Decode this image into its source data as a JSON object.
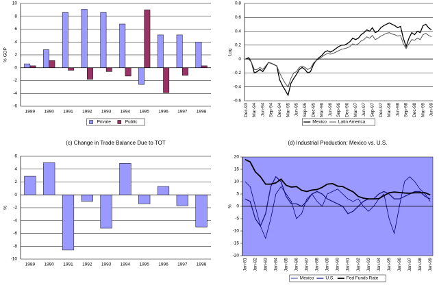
{
  "chart_data": [
    {
      "type": "bar",
      "y_label": "% GDP",
      "categories": [
        "1989",
        "1990",
        "1991",
        "1992",
        "1993",
        "1994",
        "1995",
        "1996",
        "1997",
        "1998"
      ],
      "series": [
        {
          "name": "Private",
          "color": "#9999ff",
          "values": [
            0.6,
            2.8,
            8.6,
            9.1,
            8.6,
            6.8,
            -2.6,
            5.1,
            5.1,
            4.0
          ]
        },
        {
          "name": "Public",
          "color": "#993366",
          "values": [
            0.3,
            1.1,
            -0.4,
            -1.8,
            -0.6,
            -1.3,
            9.0,
            -3.9,
            -1.2,
            0.3
          ]
        }
      ],
      "ylim": [
        -6,
        10
      ],
      "yticks": [
        -6,
        -4,
        -2,
        0,
        2,
        4,
        6,
        8,
        10
      ],
      "grid": true,
      "legend": "bottom"
    },
    {
      "type": "line",
      "y_label": "Log",
      "categories": [
        "Dec-93",
        null,
        null,
        "Mar-94",
        null,
        null,
        "Jun-94",
        null,
        null,
        "Sep-94",
        null,
        null,
        "Dec-94",
        null,
        null,
        "Mar-95",
        null,
        null,
        "Jun-95",
        null,
        null,
        "Sep-95",
        null,
        null,
        "Dec-95",
        null,
        null,
        "Mar-96",
        null,
        null,
        "Jun-96",
        null,
        null,
        "Sep-96",
        null,
        null,
        "Dec-96",
        null,
        null,
        "Mar-97",
        null,
        null,
        "Jun-97",
        null,
        null,
        "Sep-97",
        null,
        null,
        "Dec-97",
        null,
        null,
        "Mar-98",
        null,
        null,
        "Jun-98",
        null,
        null,
        "Sep-98",
        null,
        null,
        "Dec-98",
        null,
        null,
        "Mar-99",
        null,
        null,
        "Jun-99"
      ],
      "series": [
        {
          "name": "Mexico",
          "color": "#000000",
          "values": [
            0,
            0.02,
            -0.05,
            -0.2,
            -0.18,
            -0.15,
            -0.18,
            -0.12,
            -0.05,
            -0.06,
            -0.08,
            -0.1,
            -0.3,
            -0.38,
            -0.45,
            -0.52,
            -0.35,
            -0.28,
            -0.22,
            -0.15,
            -0.12,
            -0.15,
            -0.2,
            -0.18,
            -0.08,
            -0.02,
            0.02,
            0.05,
            0.1,
            0.12,
            0.1,
            0.12,
            0.15,
            0.18,
            0.2,
            0.2,
            0.22,
            0.25,
            0.3,
            0.28,
            0.3,
            0.35,
            0.38,
            0.42,
            0.4,
            0.45,
            0.38,
            0.4,
            0.45,
            0.48,
            0.5,
            0.52,
            0.5,
            0.48,
            0.45,
            0.47,
            0.3,
            0.18,
            0.3,
            0.38,
            0.35,
            0.4,
            0.38,
            0.48,
            0.5,
            0.45,
            0.42
          ]
        },
        {
          "name": "Latin America",
          "color": "#555555",
          "values": [
            0,
            0,
            -0.05,
            -0.15,
            -0.15,
            -0.12,
            -0.15,
            -0.1,
            -0.05,
            -0.06,
            -0.08,
            -0.1,
            -0.2,
            -0.28,
            -0.35,
            -0.4,
            -0.28,
            -0.2,
            -0.18,
            -0.12,
            -0.1,
            -0.12,
            -0.15,
            -0.13,
            -0.06,
            -0.02,
            0,
            0.03,
            0.06,
            0.08,
            0.07,
            0.08,
            0.1,
            0.12,
            0.14,
            0.15,
            0.16,
            0.18,
            0.22,
            0.2,
            0.22,
            0.26,
            0.28,
            0.32,
            0.3,
            0.34,
            0.28,
            0.3,
            0.33,
            0.35,
            0.37,
            0.38,
            0.36,
            0.35,
            0.33,
            0.34,
            0.22,
            0.15,
            0.22,
            0.28,
            0.27,
            0.3,
            0.28,
            0.35,
            0.37,
            0.34,
            0.32
          ]
        }
      ],
      "ylim": [
        -0.6,
        0.8
      ],
      "yticks": [
        -0.6,
        -0.4,
        -0.2,
        0,
        0.2,
        0.4,
        0.6,
        0.8
      ],
      "grid": true,
      "legend": "bottom"
    },
    {
      "type": "bar",
      "title": "(c) Change in Trade Balance Due to TOT",
      "y_label": "%",
      "categories": [
        "1989",
        "1990",
        "1991",
        "1992",
        "1993",
        "1994",
        "1995",
        "1996",
        "1997",
        "1998"
      ],
      "values": [
        2.9,
        5.0,
        -8.6,
        -1.0,
        -5.2,
        4.9,
        -1.4,
        1.3,
        -1.7,
        -5.0
      ],
      "color": "#9999ff",
      "ylim": [
        -10,
        6
      ],
      "yticks": [
        -10,
        -8,
        -6,
        -4,
        -2,
        0,
        2,
        4,
        6
      ],
      "grid": true
    },
    {
      "type": "line",
      "title": "(d) Industrial Production: Mexico vs. U.S.",
      "y_label": "%",
      "plot_background": "#9999ff",
      "categories": [
        "Jan-81",
        null,
        "Jan-82",
        null,
        "Jan-83",
        null,
        "Jan-84",
        null,
        "Jan-85",
        null,
        "Jan-86",
        null,
        "Jan-87",
        null,
        "Jan-88",
        null,
        "Jan-89",
        null,
        "Jan-90",
        null,
        "Jan-91",
        null,
        "Jan-92",
        null,
        "Jan-93",
        null,
        "Jan-94",
        null,
        "Jan-95",
        null,
        "Jan-96",
        null,
        "Jan-97",
        null,
        "Jan-98",
        null,
        "Jan-99"
      ],
      "series": [
        {
          "name": "Mexico",
          "color": "#000080",
          "values": [
            10,
            8,
            0,
            -8,
            -13,
            -5,
            5,
            8,
            5,
            2,
            -5,
            -3,
            3,
            5,
            2,
            0,
            5,
            6,
            7,
            5,
            3,
            2,
            3,
            0,
            -2,
            0,
            3,
            5,
            -5,
            -11,
            0,
            10,
            12,
            10,
            7,
            5,
            2
          ]
        },
        {
          "name": "U.S.",
          "color": "#1a1a80",
          "values": [
            3,
            2,
            -5,
            -8,
            -3,
            8,
            12,
            10,
            4,
            1,
            1,
            0,
            2,
            5,
            6,
            5,
            3,
            2,
            1,
            0,
            -3,
            -2,
            0,
            2,
            3,
            3,
            5,
            6,
            5,
            3,
            3,
            4,
            5,
            6,
            6,
            4,
            3
          ]
        },
        {
          "name": "Fed Funds Rate",
          "color": "#000000",
          "values": [
            19,
            18,
            14,
            12,
            9,
            9,
            9.5,
            11,
            8.5,
            7.8,
            8,
            6.5,
            6,
            6.6,
            6.8,
            7.7,
            9,
            9.2,
            8.2,
            8,
            6.9,
            5.9,
            4,
            3.3,
            3,
            3,
            3.1,
            4.3,
            5.5,
            5.8,
            5.6,
            5.4,
            5.3,
            5.5,
            5.5,
            5.5,
            4.6
          ]
        }
      ],
      "ylim": [
        -20,
        20
      ],
      "yticks": [
        -20,
        -15,
        -10,
        -5,
        0,
        5,
        10,
        15,
        20
      ],
      "grid": false,
      "legend": "bottom"
    }
  ]
}
